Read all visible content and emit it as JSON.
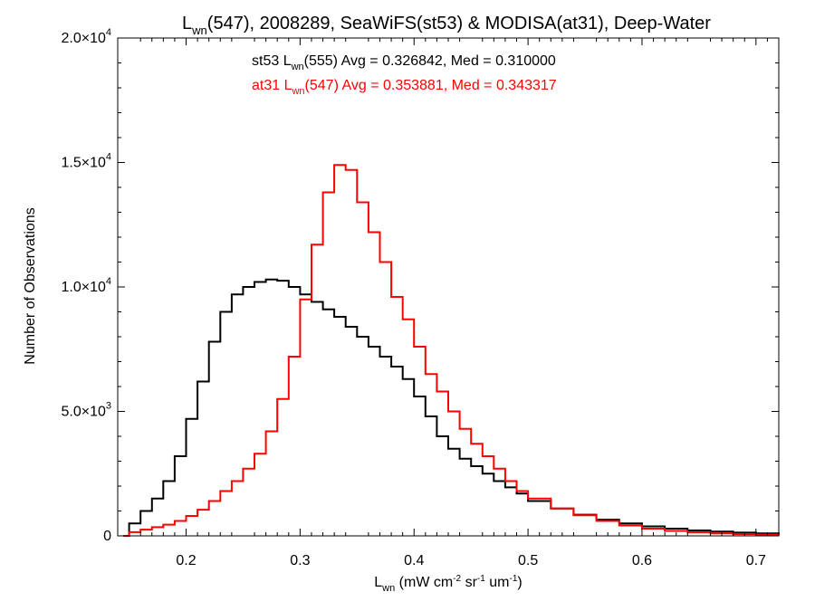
{
  "chart_data": {
    "type": "line",
    "title": {
      "main": "L",
      "sub": "wn",
      "rest": "(547), 2008289, SeaWiFS(st53) & MODISA(at31), Deep-Water"
    },
    "xlabel": {
      "main": "L",
      "sub": "wn",
      "units": [
        {
          "t": " (mW cm",
          "sup": "-2"
        },
        {
          "t": " sr",
          "sup": "-1"
        },
        {
          "t": " um",
          "sup": "-1"
        },
        {
          "t": ")",
          "sup": ""
        }
      ]
    },
    "ylabel": "Number of Observations",
    "xlim": [
      0.14,
      0.72
    ],
    "ylim": [
      0,
      20000
    ],
    "xticks": [
      "0.2",
      "0.3",
      "0.4",
      "0.5",
      "0.6",
      "0.7"
    ],
    "yticks": [
      {
        "value": 0,
        "mant": "0",
        "exp": ""
      },
      {
        "value": 5000,
        "mant": "5.0×10",
        "exp": "3"
      },
      {
        "value": 10000,
        "mant": "1.0×10",
        "exp": "4"
      },
      {
        "value": 15000,
        "mant": "1.5×10",
        "exp": "4"
      },
      {
        "value": 20000,
        "mant": "2.0×10",
        "exp": "4"
      }
    ],
    "annotations": [
      {
        "color": "#000000",
        "pre": "st53 L",
        "sub": "wn",
        "post": "(555) Avg = 0.326842, Med = 0.310000"
      },
      {
        "color": "#ff0000",
        "pre": "at31 L",
        "sub": "wn",
        "post": "(547) Avg = 0.353881, Med = 0.343317"
      }
    ],
    "series": [
      {
        "color": "#000000",
        "x": [
          0.145,
          0.15,
          0.16,
          0.17,
          0.18,
          0.19,
          0.2,
          0.21,
          0.22,
          0.23,
          0.24,
          0.25,
          0.26,
          0.27,
          0.28,
          0.29,
          0.3,
          0.31,
          0.32,
          0.33,
          0.34,
          0.35,
          0.36,
          0.37,
          0.38,
          0.39,
          0.4,
          0.41,
          0.42,
          0.43,
          0.44,
          0.45,
          0.46,
          0.47,
          0.48,
          0.49,
          0.5,
          0.52,
          0.54,
          0.56,
          0.58,
          0.6,
          0.62,
          0.64,
          0.66,
          0.68,
          0.7,
          0.72
        ],
        "y": [
          0,
          500,
          1000,
          1500,
          2200,
          3200,
          4700,
          6200,
          7800,
          9000,
          9700,
          10000,
          10200,
          10300,
          10250,
          10000,
          9700,
          9400,
          9100,
          8800,
          8400,
          8000,
          7600,
          7200,
          6800,
          6300,
          5600,
          4800,
          4000,
          3500,
          3100,
          2800,
          2500,
          2200,
          1950,
          1700,
          1400,
          1100,
          850,
          650,
          500,
          380,
          290,
          220,
          170,
          130,
          100,
          80
        ]
      },
      {
        "color": "#ff0000",
        "x": [
          0.145,
          0.15,
          0.16,
          0.17,
          0.18,
          0.19,
          0.2,
          0.21,
          0.22,
          0.23,
          0.24,
          0.25,
          0.26,
          0.27,
          0.28,
          0.29,
          0.3,
          0.31,
          0.32,
          0.33,
          0.34,
          0.35,
          0.36,
          0.37,
          0.38,
          0.39,
          0.4,
          0.41,
          0.42,
          0.43,
          0.44,
          0.45,
          0.46,
          0.47,
          0.48,
          0.49,
          0.5,
          0.52,
          0.54,
          0.56,
          0.58,
          0.6,
          0.62,
          0.64,
          0.66,
          0.68,
          0.7,
          0.72
        ],
        "y": [
          0,
          150,
          250,
          350,
          450,
          600,
          800,
          1050,
          1400,
          1800,
          2200,
          2700,
          3300,
          4200,
          5500,
          7200,
          9500,
          11700,
          13800,
          14900,
          14700,
          13400,
          12200,
          11000,
          9600,
          8700,
          7600,
          6500,
          5800,
          5000,
          4300,
          3700,
          3200,
          2700,
          2200,
          1800,
          1500,
          1100,
          830,
          600,
          420,
          290,
          200,
          140,
          100,
          70,
          50,
          30
        ]
      }
    ]
  }
}
